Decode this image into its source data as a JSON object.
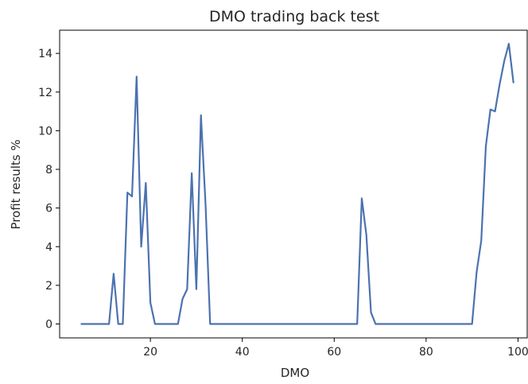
{
  "chart_data": {
    "type": "line",
    "title": "DMO trading back test",
    "xlabel": "DMO",
    "ylabel": "Profit results %",
    "xlim": [
      0.25,
      102
    ],
    "ylim": [
      -0.72,
      15.2
    ],
    "xticks": [
      20,
      40,
      60,
      80,
      100
    ],
    "yticks": [
      0,
      2,
      4,
      6,
      8,
      10,
      12,
      14
    ],
    "grid": false,
    "legend": null,
    "colors": {
      "line": "#4c72b0",
      "axes": "#000000",
      "background": "#ffffff"
    },
    "series": [
      {
        "x": [
          5,
          6,
          7,
          8,
          9,
          10,
          11,
          12,
          13,
          14,
          15,
          16,
          17,
          18,
          19,
          20,
          21,
          22,
          23,
          24,
          25,
          26,
          27,
          28,
          29,
          30,
          31,
          32,
          33,
          34,
          35,
          36,
          37,
          38,
          39,
          40,
          41,
          42,
          43,
          44,
          45,
          46,
          47,
          48,
          49,
          50,
          51,
          52,
          53,
          54,
          55,
          56,
          57,
          58,
          59,
          60,
          61,
          62,
          63,
          64,
          65,
          66,
          67,
          68,
          69,
          70,
          71,
          72,
          73,
          74,
          75,
          76,
          77,
          78,
          79,
          80,
          81,
          82,
          83,
          84,
          85,
          86,
          87,
          88,
          89,
          90,
          91,
          92,
          93,
          94,
          95,
          96,
          97,
          98,
          99
        ],
        "values": [
          0,
          0,
          0,
          0,
          0,
          0,
          0,
          2.6,
          0,
          0,
          6.8,
          6.6,
          12.8,
          4.0,
          7.3,
          1.1,
          0,
          0,
          0,
          0,
          0,
          0,
          1.3,
          1.8,
          7.8,
          1.8,
          10.8,
          6.2,
          0,
          0,
          0,
          0,
          0,
          0,
          0,
          0,
          0,
          0,
          0,
          0,
          0,
          0,
          0,
          0,
          0,
          0,
          0,
          0,
          0,
          0,
          0,
          0,
          0,
          0,
          0,
          0,
          0,
          0,
          0,
          0,
          0,
          6.5,
          4.6,
          0.6,
          0,
          0,
          0,
          0,
          0,
          0,
          0,
          0,
          0,
          0,
          0,
          0,
          0,
          0,
          0,
          0,
          0,
          0,
          0,
          0,
          0,
          0,
          2.7,
          4.3,
          9.2,
          11.1,
          11.0,
          12.4,
          13.6,
          14.5,
          12.5
        ]
      }
    ]
  }
}
